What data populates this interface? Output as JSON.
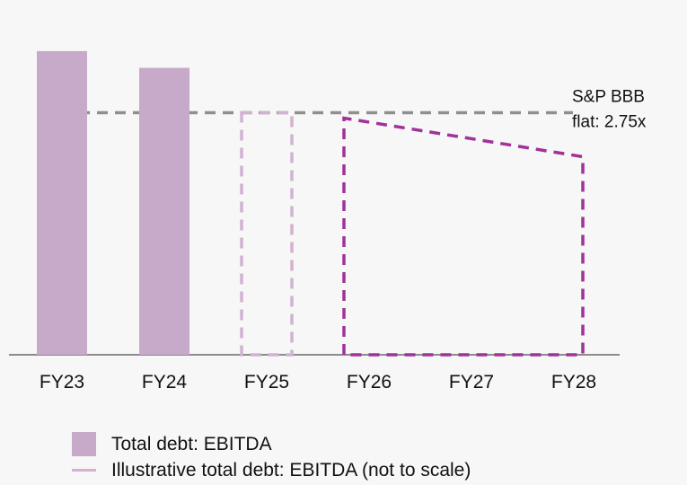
{
  "chart_data": {
    "type": "bar",
    "categories": [
      "FY23",
      "FY24",
      "FY25",
      "FY26",
      "FY27",
      "FY28"
    ],
    "series": [
      {
        "name": "Total debt: EBITDA",
        "values": [
          3.45,
          3.26,
          null,
          null,
          null,
          null
        ]
      },
      {
        "name": "Illustrative total debt: EBITDA (not to scale)",
        "values": [
          null,
          null,
          2.75,
          2.75,
          2.5,
          2.25
        ]
      }
    ],
    "reference_line": {
      "value": 2.75,
      "label_line1": "S&P BBB",
      "label_line2": "flat: 2.75x"
    },
    "ylim": [
      0,
      3.5
    ],
    "title": "",
    "xlabel": "",
    "ylabel": "",
    "grid": false,
    "legend_position": "bottom-left"
  },
  "colors": {
    "background": "#f7f7f7",
    "solid_bar": "#c7a9c9",
    "dashed_light": "#d1b2d3",
    "dashed_dark": "#a0329a",
    "reference": "#8f8f8f",
    "axis": "#8c8c8c"
  },
  "legend": {
    "items": [
      {
        "label": "Total debt: EBITDA",
        "swatch": "box"
      },
      {
        "label": "Illustrative total debt: EBITDA (not to scale)",
        "swatch": "line"
      }
    ]
  }
}
